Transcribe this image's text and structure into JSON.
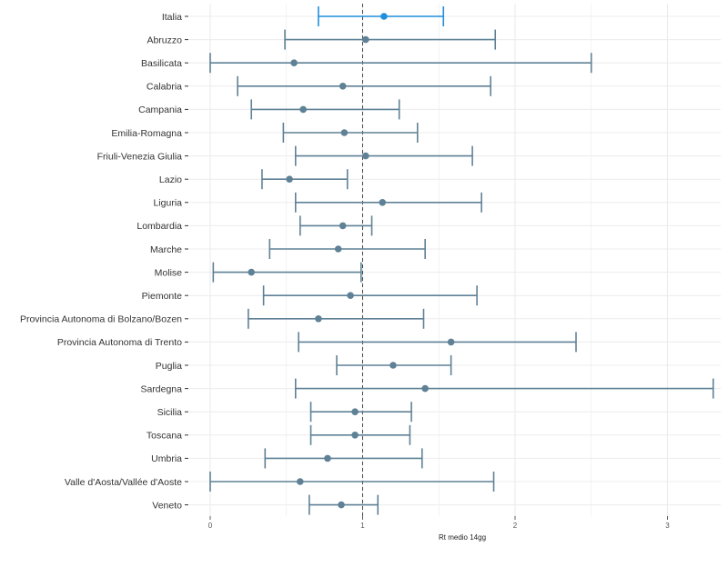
{
  "chart_data": {
    "type": "scatter",
    "subtype": "interval-plot",
    "title": "",
    "xlabel": "Rt medio 14gg",
    "ylabel": "",
    "xlim": [
      -0.05,
      3.3
    ],
    "xticks": [
      0,
      1,
      2,
      3
    ],
    "xtick_labels": [
      "0",
      "1",
      "2",
      "3"
    ],
    "reference_line": {
      "x": 1,
      "style": "dashed"
    },
    "grid": true,
    "legend": "none",
    "colors": {
      "highlight": "#1f8fdc",
      "default": "#5f8196",
      "reference": "#444444",
      "grid": "#ececec"
    },
    "rows": [
      {
        "label": "Italia",
        "lower": 0.71,
        "value": 1.14,
        "upper": 1.53,
        "highlight": true
      },
      {
        "label": "Abruzzo",
        "lower": 0.49,
        "value": 1.02,
        "upper": 1.87
      },
      {
        "label": "Basilicata",
        "lower": 0.0,
        "value": 0.55,
        "upper": 2.5
      },
      {
        "label": "Calabria",
        "lower": 0.18,
        "value": 0.87,
        "upper": 1.84
      },
      {
        "label": "Campania",
        "lower": 0.27,
        "value": 0.61,
        "upper": 1.24
      },
      {
        "label": "Emilia-Romagna",
        "lower": 0.48,
        "value": 0.88,
        "upper": 1.36
      },
      {
        "label": "Friuli-Venezia Giulia",
        "lower": 0.56,
        "value": 1.02,
        "upper": 1.72
      },
      {
        "label": "Lazio",
        "lower": 0.34,
        "value": 0.52,
        "upper": 0.9
      },
      {
        "label": "Liguria",
        "lower": 0.56,
        "value": 1.13,
        "upper": 1.78
      },
      {
        "label": "Lombardia",
        "lower": 0.59,
        "value": 0.87,
        "upper": 1.06
      },
      {
        "label": "Marche",
        "lower": 0.39,
        "value": 0.84,
        "upper": 1.41
      },
      {
        "label": "Molise",
        "lower": 0.02,
        "value": 0.27,
        "upper": 0.99
      },
      {
        "label": "Piemonte",
        "lower": 0.35,
        "value": 0.92,
        "upper": 1.75
      },
      {
        "label": "Provincia Autonoma di Bolzano/Bozen",
        "lower": 0.25,
        "value": 0.71,
        "upper": 1.4
      },
      {
        "label": "Provincia Autonoma di Trento",
        "lower": 0.58,
        "value": 1.58,
        "upper": 2.4
      },
      {
        "label": "Puglia",
        "lower": 0.83,
        "value": 1.2,
        "upper": 1.58
      },
      {
        "label": "Sardegna",
        "lower": 0.56,
        "value": 1.41,
        "upper": 3.3
      },
      {
        "label": "Sicilia",
        "lower": 0.66,
        "value": 0.95,
        "upper": 1.32
      },
      {
        "label": "Toscana",
        "lower": 0.66,
        "value": 0.95,
        "upper": 1.31
      },
      {
        "label": "Umbria",
        "lower": 0.36,
        "value": 0.77,
        "upper": 1.39
      },
      {
        "label": "Valle d'Aosta/Vallée d'Aoste",
        "lower": 0.0,
        "value": 0.59,
        "upper": 1.86
      },
      {
        "label": "Veneto",
        "lower": 0.65,
        "value": 0.86,
        "upper": 1.1
      }
    ]
  }
}
